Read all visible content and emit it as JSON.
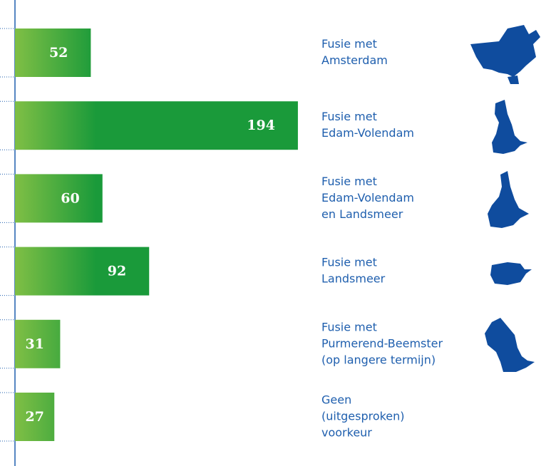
{
  "chart_data": {
    "type": "bar",
    "orientation": "horizontal",
    "categories": [
      [
        "Fusie met",
        "Amsterdam"
      ],
      [
        "Fusie met",
        "Edam-Volendam"
      ],
      [
        "Fusie met",
        "Edam-Volendam",
        "en Landsmeer"
      ],
      [
        "Fusie met",
        "Landsmeer"
      ],
      [
        "Fusie met",
        "Purmerend-Beemster",
        "(op langere termijn)"
      ],
      [
        "Geen",
        "(uitgesproken)",
        "voorkeur"
      ]
    ],
    "values": [
      52,
      194,
      60,
      92,
      31,
      27
    ],
    "color": "#1a9a3a"
  }
}
